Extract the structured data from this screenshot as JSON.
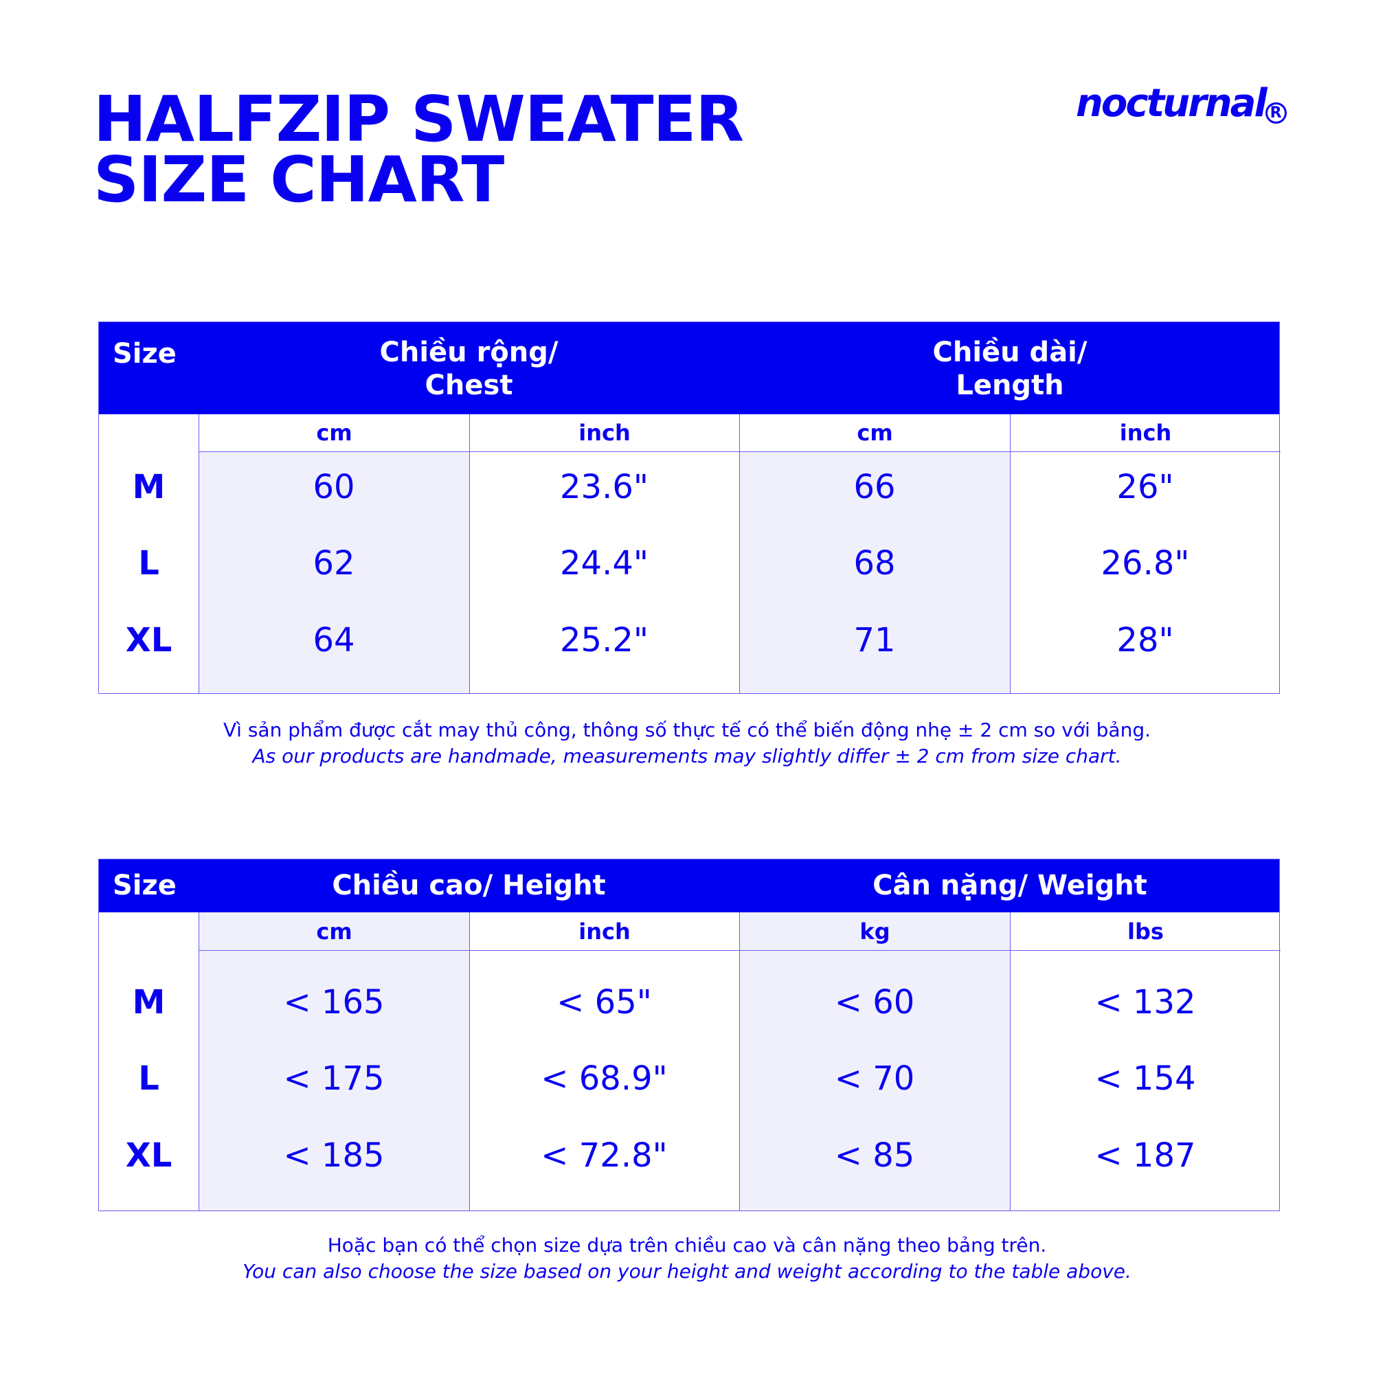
{
  "title": {
    "line1": "HALFZIP SWEATER",
    "line2": "SIZE CHART"
  },
  "brand": {
    "name": "nocturnal",
    "mark": "R"
  },
  "colors": {
    "primary": "#0000F0",
    "shade": "#F0F0FC"
  },
  "table1": {
    "size_label": "Size",
    "groups": [
      "Chiều rộng/\nChest",
      "Chiều dài/\nLength"
    ],
    "units": [
      "cm",
      "inch",
      "cm",
      "inch"
    ],
    "rows": [
      {
        "size": "M",
        "values": [
          "60",
          "23.6\"",
          "66",
          "26\""
        ]
      },
      {
        "size": "L",
        "values": [
          "62",
          "24.4\"",
          "68",
          "26.8\""
        ]
      },
      {
        "size": "XL",
        "values": [
          "64",
          "25.2\"",
          "71",
          "28\""
        ]
      }
    ],
    "note_vi": "Vì sản phẩm được cắt may thủ công, thông số thực tế có thể biến động nhẹ ± 2 cm so với bảng.",
    "note_en": "As our products are handmade, measurements may slightly differ ± 2 cm from size chart."
  },
  "table2": {
    "size_label": "Size",
    "groups": [
      "Chiều cao/ Height",
      "Cân nặng/ Weight"
    ],
    "units": [
      "cm",
      "inch",
      "kg",
      "lbs"
    ],
    "rows": [
      {
        "size": "M",
        "values": [
          "< 165",
          "< 65\"",
          "< 60",
          "< 132"
        ]
      },
      {
        "size": "L",
        "values": [
          "< 175",
          "< 68.9\"",
          "< 70",
          "< 154"
        ]
      },
      {
        "size": "XL",
        "values": [
          "< 185",
          "< 72.8\"",
          "< 85",
          "< 187"
        ]
      }
    ],
    "note_vi": "Hoặc bạn có thể chọn size dựa trên chiều cao và cân nặng theo bảng trên.",
    "note_en": "You can also choose the size based on your height and weight according to the table above."
  }
}
